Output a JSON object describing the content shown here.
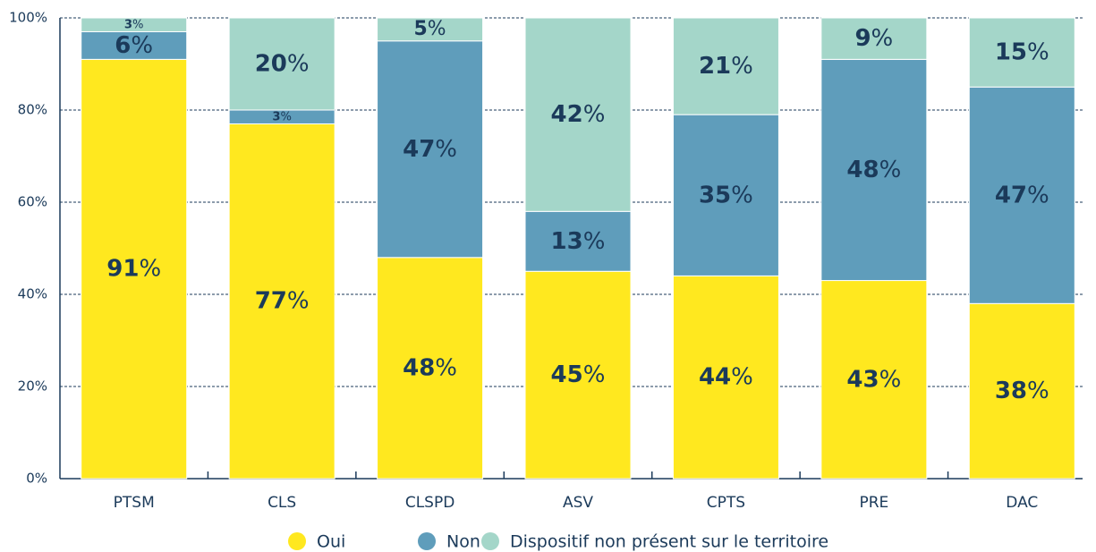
{
  "chart_data": {
    "type": "stacked_bar",
    "categories": [
      "PTSM",
      "CLS",
      "CLSPD",
      "ASV",
      "CPTS",
      "PRE",
      "DAC"
    ],
    "series": [
      {
        "name": "Oui",
        "color": "#ffe81f",
        "values": [
          91,
          77,
          48,
          45,
          44,
          43,
          38
        ],
        "value_labels": [
          "91%",
          "77%",
          "48%",
          "45%",
          "44%",
          "43%",
          "38%"
        ]
      },
      {
        "name": "Non",
        "color": "#5f9dbb",
        "values": [
          6,
          3,
          47,
          13,
          35,
          48,
          47
        ],
        "value_labels": [
          "6%",
          "3%",
          "47%",
          "13%",
          "35%",
          "48%",
          "47%"
        ]
      },
      {
        "name": "Dispositif non présent sur le territoire",
        "color": "#a4d6c9",
        "values": [
          3,
          20,
          5,
          42,
          21,
          9,
          15
        ],
        "value_labels": [
          "3%",
          "20%",
          "5%",
          "42%",
          "21%",
          "9%",
          "15%"
        ]
      }
    ],
    "ylim": [
      0,
      100
    ],
    "yticks": [
      {
        "value": 0,
        "label": "0%"
      },
      {
        "value": 20,
        "label": "20%"
      },
      {
        "value": 40,
        "label": "40%"
      },
      {
        "value": 60,
        "label": "60%"
      },
      {
        "value": 80,
        "label": "80%"
      },
      {
        "value": 100,
        "label": "100%"
      }
    ],
    "grid": true
  }
}
